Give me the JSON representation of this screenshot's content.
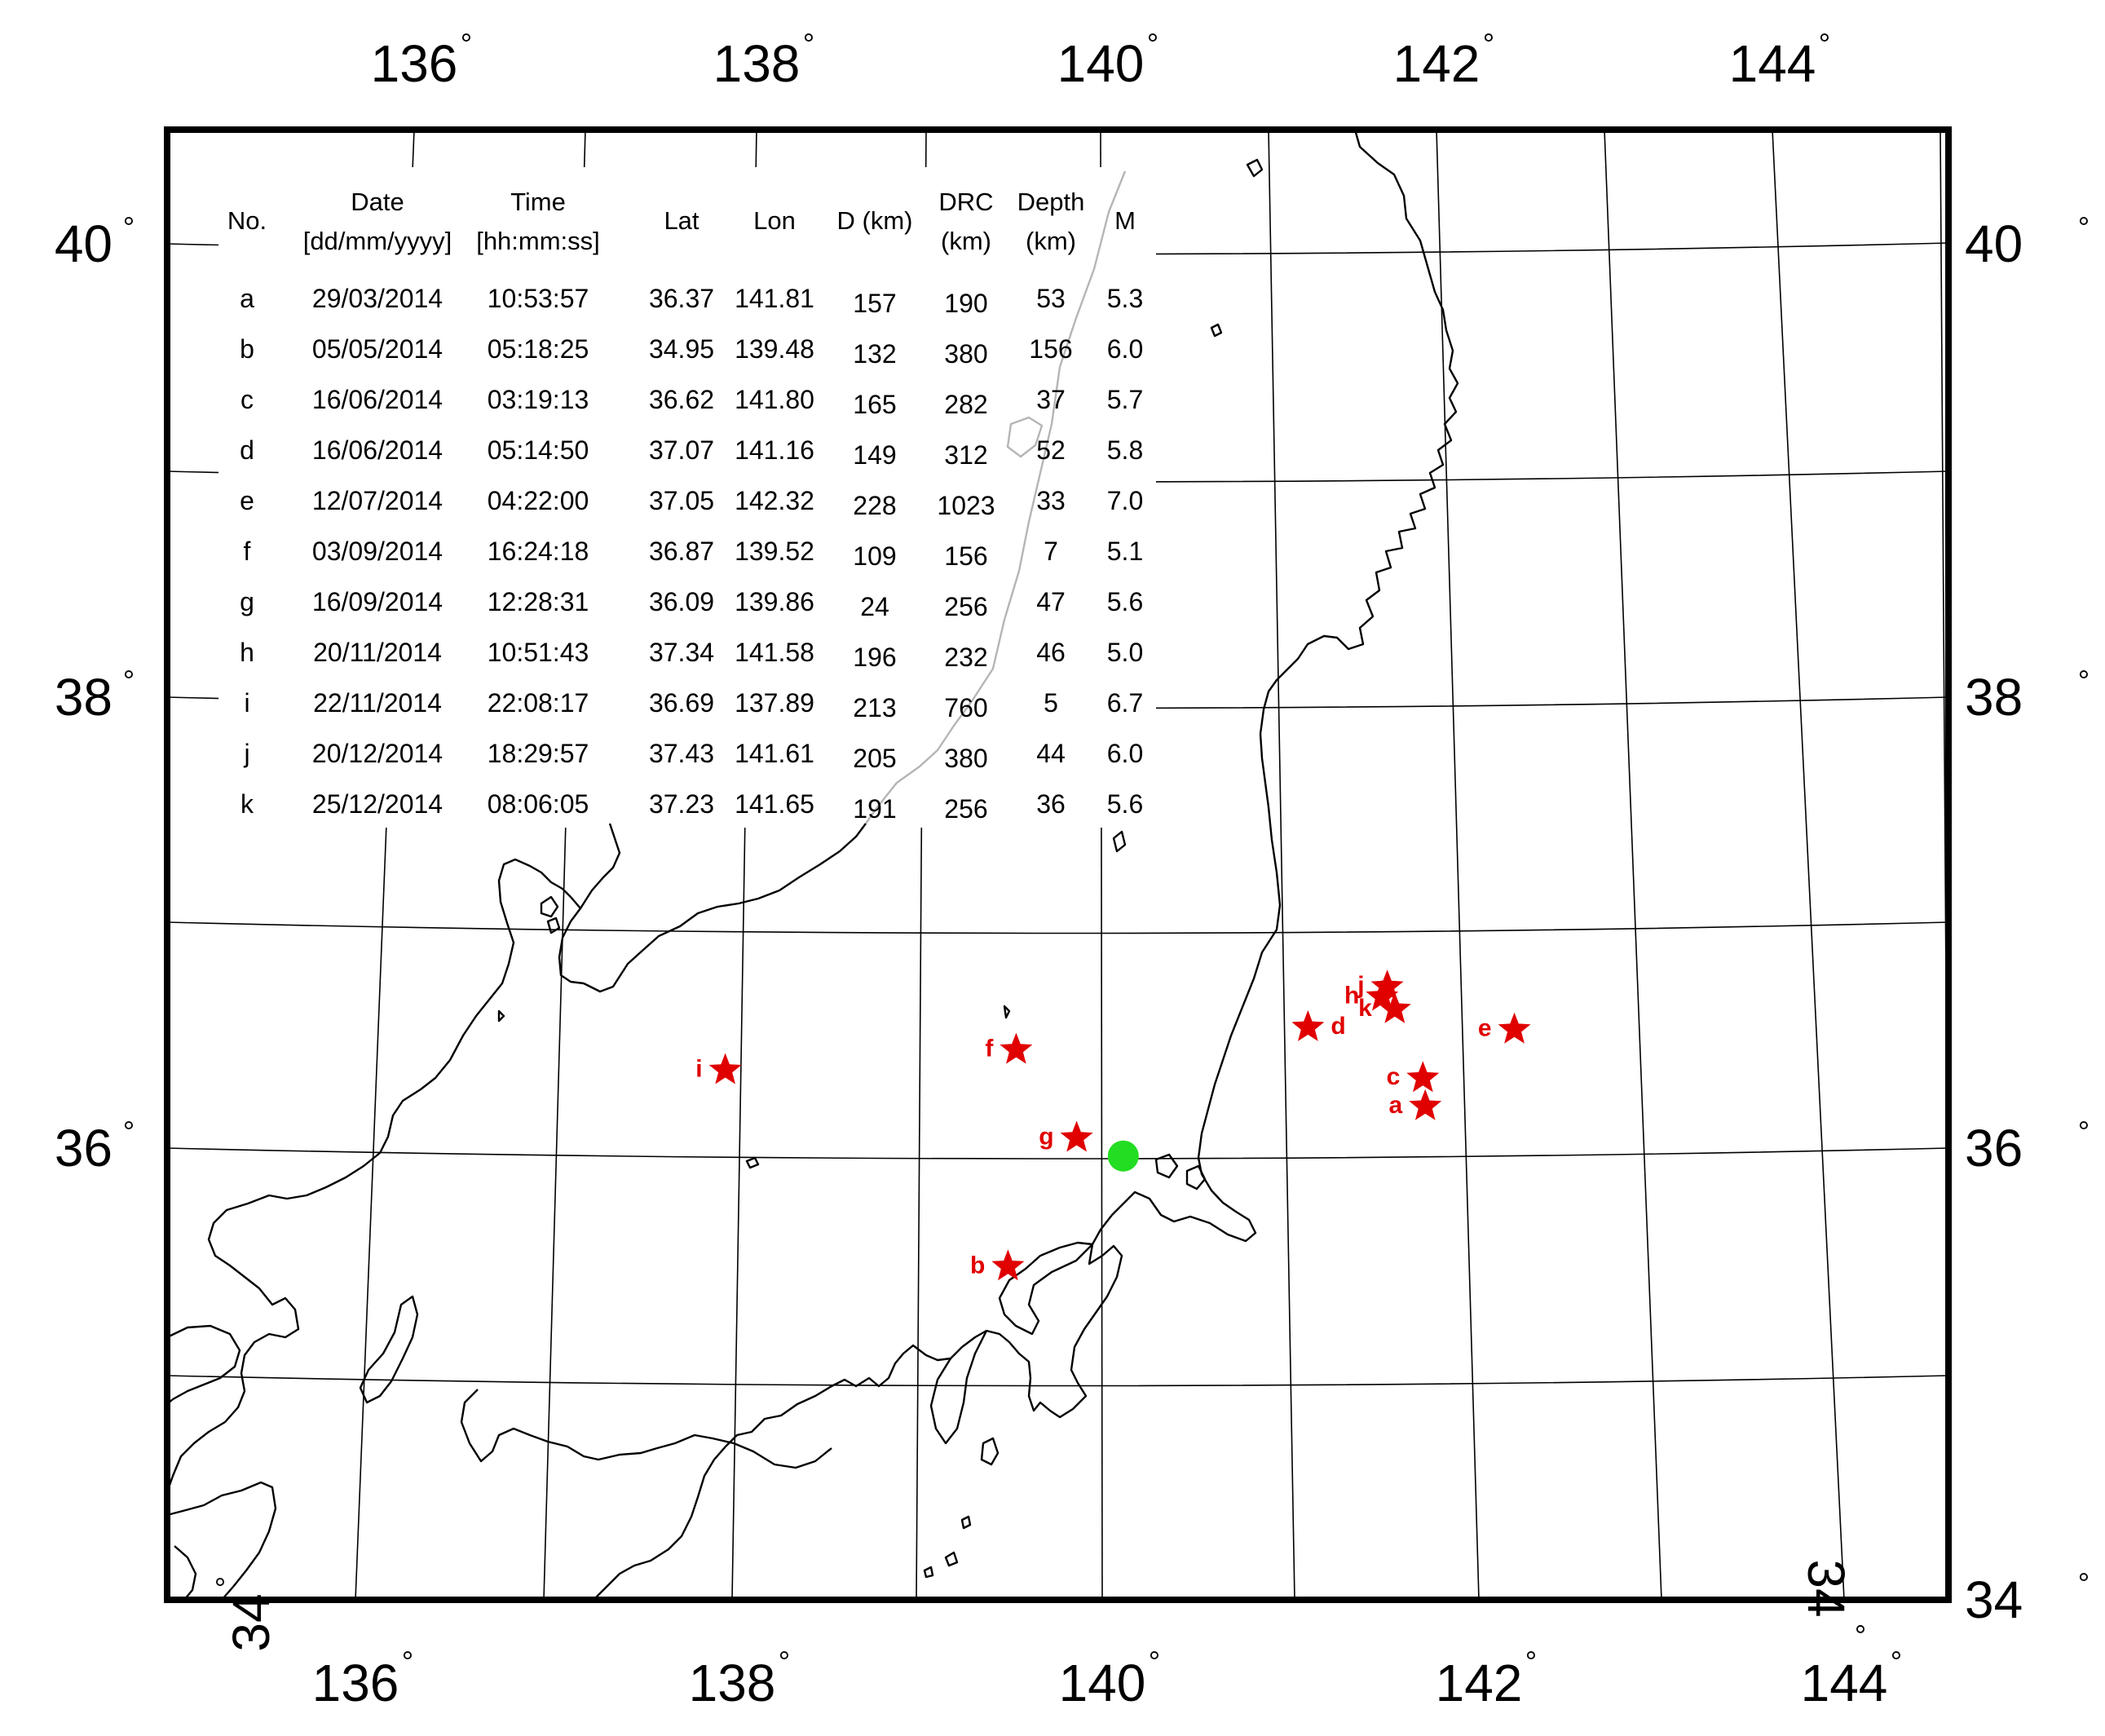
{
  "map": {
    "lon_labels": [
      {
        "value": "136",
        "deg": "°"
      },
      {
        "value": "138",
        "deg": "°"
      },
      {
        "value": "140",
        "deg": "°"
      },
      {
        "value": "142",
        "deg": "°"
      },
      {
        "value": "144",
        "deg": "°"
      }
    ],
    "lat_labels": [
      {
        "value": "40",
        "deg": "°"
      },
      {
        "value": "38",
        "deg": "°"
      },
      {
        "value": "36",
        "deg": "°"
      },
      {
        "value": "34",
        "deg": "°"
      }
    ],
    "station": {
      "color": "#22dd22",
      "lat": 35.93,
      "lon": 140.12
    },
    "marker_color": "#e00000",
    "marker_icon": "star-icon"
  },
  "table": {
    "headers": {
      "no": "No.",
      "date_line1": "Date",
      "date_line2": "[dd/mm/yyyy]",
      "time_line1": "Time",
      "time_line2": "[hh:mm:ss]",
      "lat": "Lat",
      "lon": "Lon",
      "d": "D (km)",
      "drc_line1": "DRC",
      "drc_line2": "(km)",
      "depth_line1": "Depth",
      "depth_line2": "(km)",
      "m": "M"
    },
    "rows": [
      {
        "no": "a",
        "date": "29/03/2014",
        "time": "10:53:57",
        "lat": "36.37",
        "lon": "141.81",
        "d": "157",
        "drc": "190",
        "depth": "53",
        "m": "5.3"
      },
      {
        "no": "b",
        "date": "05/05/2014",
        "time": "05:18:25",
        "lat": "34.95",
        "lon": "139.48",
        "d": "132",
        "drc": "380",
        "depth": "156",
        "m": "6.0"
      },
      {
        "no": "c",
        "date": "16/06/2014",
        "time": "03:19:13",
        "lat": "36.62",
        "lon": "141.80",
        "d": "165",
        "drc": "282",
        "depth": "37",
        "m": "5.7"
      },
      {
        "no": "d",
        "date": "16/06/2014",
        "time": "05:14:50",
        "lat": "37.07",
        "lon": "141.16",
        "d": "149",
        "drc": "312",
        "depth": "52",
        "m": "5.8"
      },
      {
        "no": "e",
        "date": "12/07/2014",
        "time": "04:22:00",
        "lat": "37.05",
        "lon": "142.32",
        "d": "228",
        "drc": "1023",
        "depth": "33",
        "m": "7.0"
      },
      {
        "no": "f",
        "date": "03/09/2014",
        "time": "16:24:18",
        "lat": "36.87",
        "lon": "139.52",
        "d": "109",
        "drc": "156",
        "depth": "7",
        "m": "5.1"
      },
      {
        "no": "g",
        "date": "16/09/2014",
        "time": "12:28:31",
        "lat": "36.09",
        "lon": "139.86",
        "d": "24",
        "drc": "256",
        "depth": "47",
        "m": "5.6"
      },
      {
        "no": "h",
        "date": "20/11/2014",
        "time": "10:51:43",
        "lat": "37.34",
        "lon": "141.58",
        "d": "196",
        "drc": "232",
        "depth": "46",
        "m": "5.0"
      },
      {
        "no": "i",
        "date": "22/11/2014",
        "time": "22:08:17",
        "lat": "36.69",
        "lon": "137.89",
        "d": "213",
        "drc": "760",
        "depth": "5",
        "m": "6.7"
      },
      {
        "no": "j",
        "date": "20/12/2014",
        "time": "18:29:57",
        "lat": "37.43",
        "lon": "141.61",
        "d": "205",
        "drc": "380",
        "depth": "44",
        "m": "6.0"
      },
      {
        "no": "k",
        "date": "25/12/2014",
        "time": "08:06:05",
        "lat": "37.23",
        "lon": "141.65",
        "d": "191",
        "drc": "256",
        "depth": "36",
        "m": "5.6"
      }
    ]
  }
}
